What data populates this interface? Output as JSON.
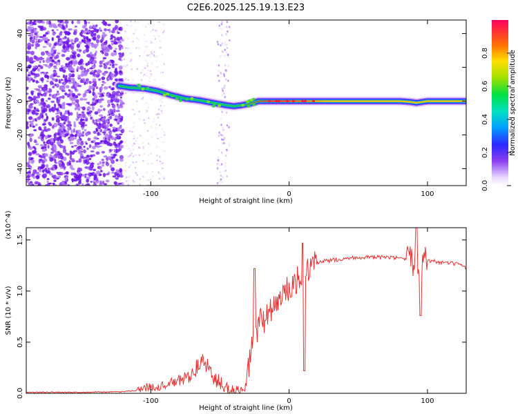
{
  "title": "C2E6.2025.125.19.13.E23",
  "chart_data": [
    {
      "type": "heatmap",
      "xlabel": "Height of straight line (km)",
      "ylabel": "Frequency (Hz)",
      "xlim": [
        -190,
        128
      ],
      "ylim": [
        -50,
        48
      ],
      "x_ticks": [
        -100,
        0,
        100
      ],
      "y_ticks": [
        -40,
        -20,
        0,
        20,
        40
      ],
      "colorbar": {
        "label": "Normalized spectral amplitude",
        "range": [
          0,
          1
        ],
        "ticks": [
          "0.0",
          "0.2",
          "0.4",
          "0.6",
          "0.8"
        ]
      },
      "ridge": {
        "x": [
          -123,
          -115,
          -105,
          -95,
          -85,
          -75,
          -65,
          -55,
          -45,
          -40,
          -35,
          -28,
          -22,
          0,
          20,
          50,
          80,
          88,
          92,
          100,
          128
        ],
        "freq": [
          9,
          8,
          7.5,
          6,
          3.5,
          1.5,
          0.5,
          -1,
          -2.5,
          -3,
          -2.5,
          -1.5,
          0,
          0,
          0,
          0,
          0,
          -0.5,
          -1,
          0,
          0
        ]
      }
    },
    {
      "type": "line",
      "xlabel": "Height of straight line (km)",
      "ylabel": "SNR (10 * v/v)",
      "y_multiplier": "(x10^4)",
      "xlim": [
        -190,
        128
      ],
      "ylim": [
        0,
        1.62
      ],
      "x_ticks": [
        -100,
        0,
        100
      ],
      "y_ticks": [
        "0.0",
        "0.5",
        "1.0",
        "1.5"
      ],
      "color": "#e83030",
      "series": [
        {
          "x": [
            -190,
            -150,
            -120,
            -110,
            -105,
            -100,
            -95,
            -90,
            -85,
            -80,
            -75,
            -70,
            -65,
            -60,
            -55,
            -50,
            -45,
            -40,
            -35,
            -32,
            -30,
            -27,
            -24,
            -22,
            -20,
            -17,
            -15,
            -12,
            -10,
            -7,
            -5,
            -2,
            0,
            3,
            5,
            7,
            10,
            12,
            15,
            18,
            20,
            25,
            30,
            35,
            40,
            50,
            60,
            70,
            80,
            85,
            88,
            90,
            92,
            94,
            96,
            98,
            100,
            105,
            110,
            115,
            120,
            125,
            128
          ],
          "y": [
            0.01,
            0.01,
            0.015,
            0.03,
            0.05,
            0.07,
            0.06,
            0.08,
            0.1,
            0.12,
            0.15,
            0.2,
            0.28,
            0.3,
            0.15,
            0.1,
            0.05,
            0.02,
            0.02,
            0.02,
            0.2,
            0.45,
            0.55,
            0.65,
            0.75,
            0.7,
            0.8,
            0.85,
            0.85,
            0.9,
            0.95,
            1.0,
            1.0,
            1.05,
            1.1,
            1.12,
            1.18,
            1.2,
            1.22,
            1.24,
            1.27,
            1.29,
            1.3,
            1.31,
            1.32,
            1.33,
            1.33,
            1.33,
            1.32,
            1.3,
            1.3,
            1.28,
            1.28,
            1.3,
            1.32,
            1.3,
            1.3,
            1.29,
            1.28,
            1.27,
            1.27,
            1.24,
            1.22
          ]
        }
      ]
    }
  ]
}
